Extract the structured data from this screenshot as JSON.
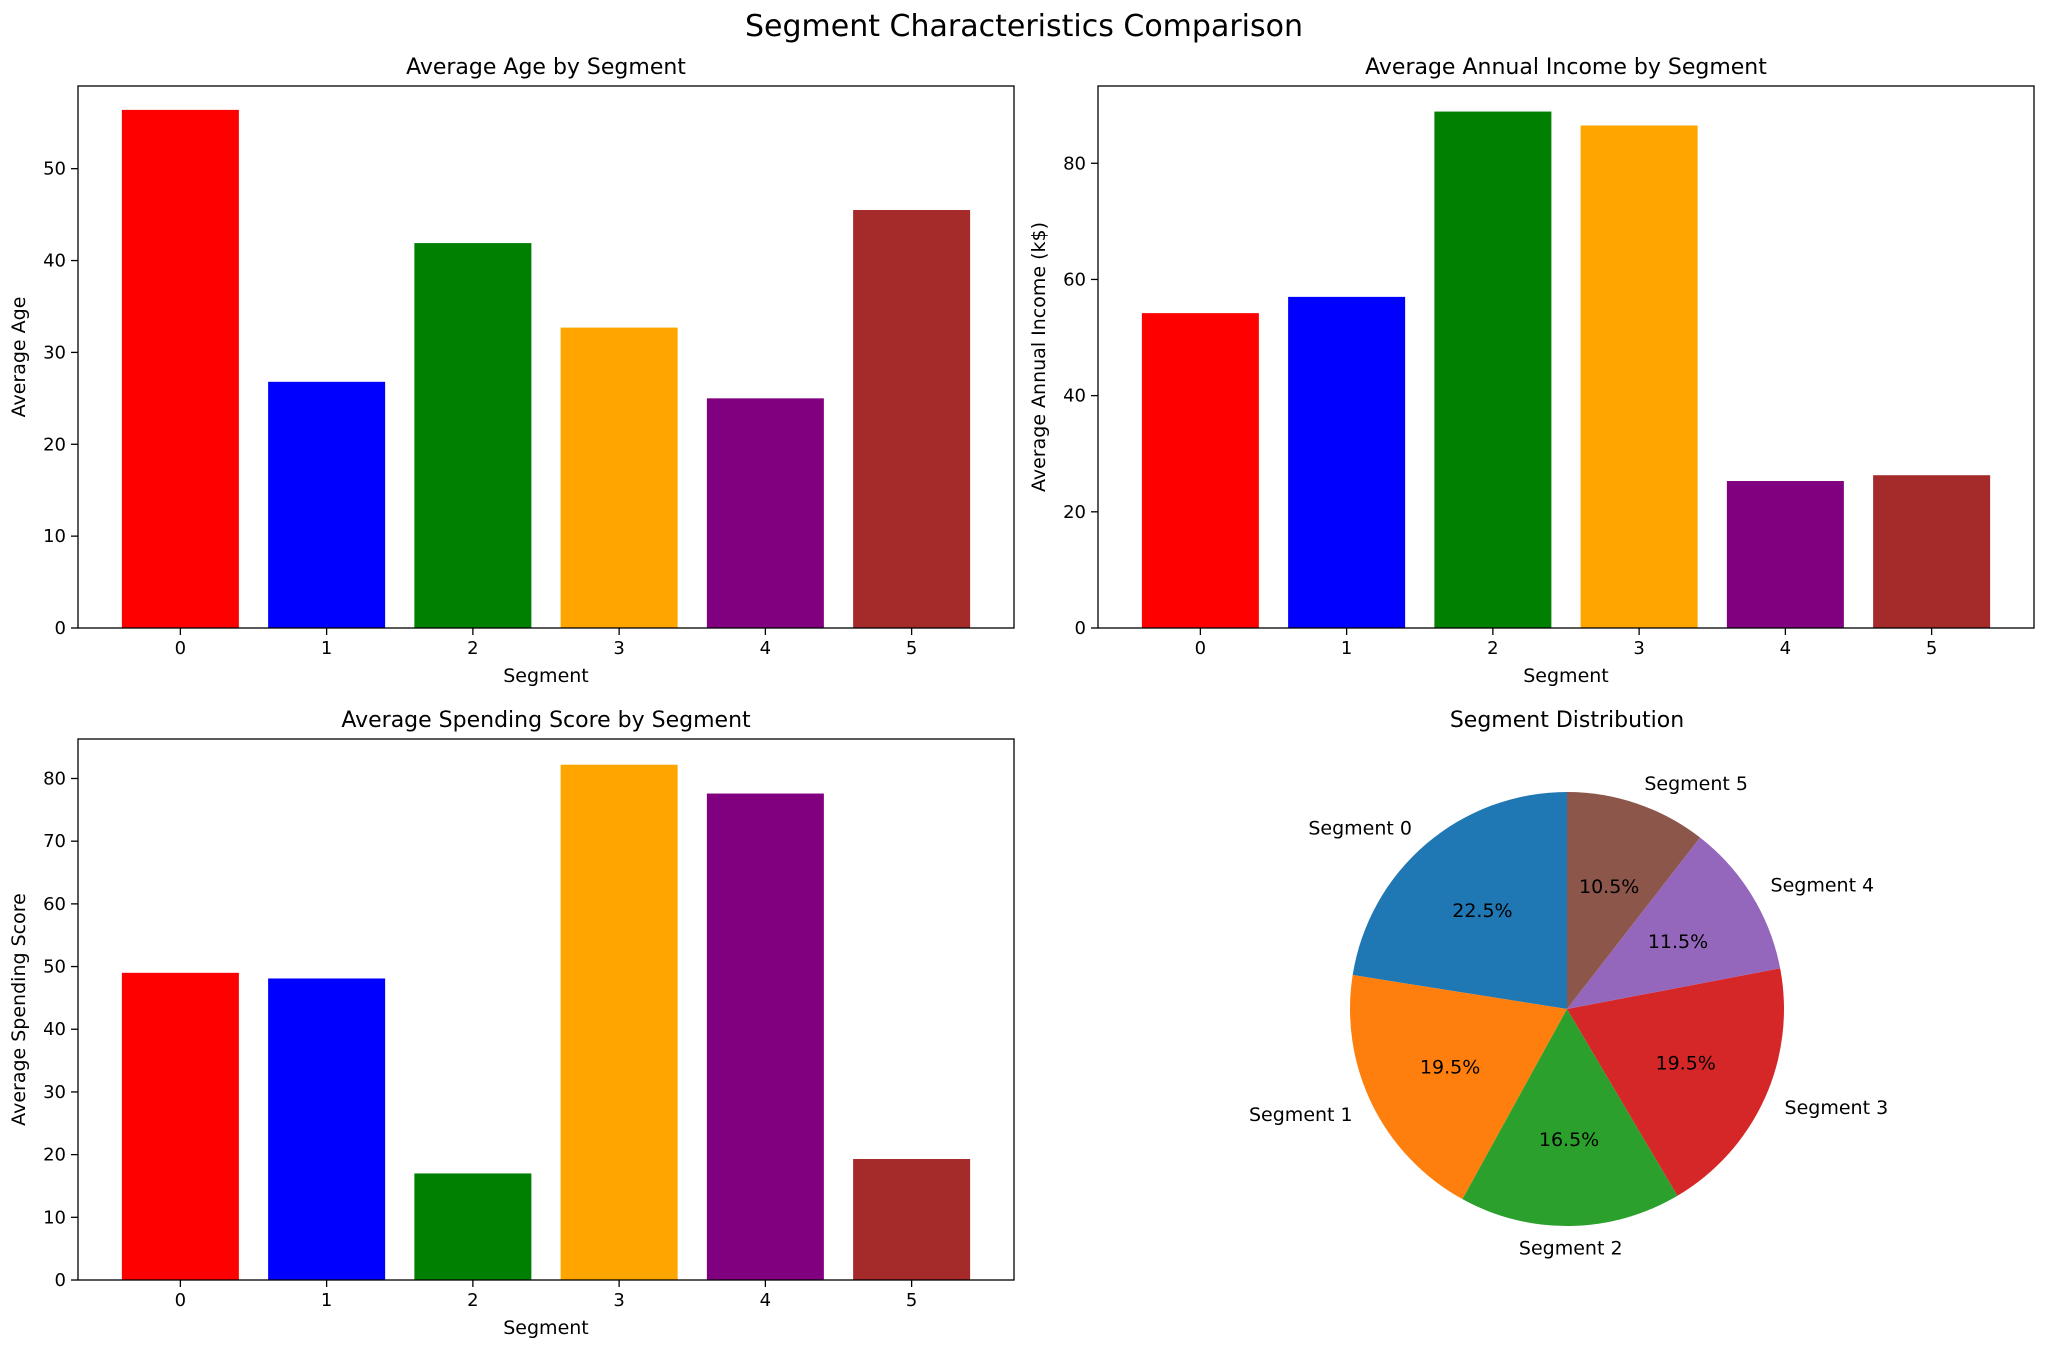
{
  "figure": {
    "title": "Segment Characteristics Comparison"
  },
  "chart_data": [
    {
      "type": "bar",
      "title": "Average Age by Segment",
      "xlabel": "Segment",
      "ylabel": "Average Age",
      "categories": [
        "0",
        "1",
        "2",
        "3",
        "4",
        "5"
      ],
      "values": [
        56.4,
        26.8,
        41.9,
        32.7,
        25.0,
        45.5
      ],
      "colors": [
        "#ff0000",
        "#0000ff",
        "#008000",
        "#ffa500",
        "#800080",
        "#a52a2a"
      ],
      "ylim": [
        0,
        59
      ],
      "yticks": [
        0,
        10,
        20,
        30,
        40,
        50
      ],
      "grid": false
    },
    {
      "type": "bar",
      "title": "Average Annual Income by Segment",
      "xlabel": "Segment",
      "ylabel": "Average Annual Income (k$)",
      "categories": [
        "0",
        "1",
        "2",
        "3",
        "4",
        "5"
      ],
      "values": [
        54.2,
        57.0,
        88.9,
        86.5,
        25.3,
        26.3
      ],
      "colors": [
        "#ff0000",
        "#0000ff",
        "#008000",
        "#ffa500",
        "#800080",
        "#a52a2a"
      ],
      "ylim": [
        0,
        93.3
      ],
      "yticks": [
        0,
        20,
        40,
        60,
        80
      ],
      "grid": false
    },
    {
      "type": "bar",
      "title": "Average Spending Score by Segment",
      "xlabel": "Segment",
      "ylabel": "Average Spending Score",
      "categories": [
        "0",
        "1",
        "2",
        "3",
        "4",
        "5"
      ],
      "values": [
        49.0,
        48.1,
        17.0,
        82.2,
        77.6,
        19.3
      ],
      "colors": [
        "#ff0000",
        "#0000ff",
        "#008000",
        "#ffa500",
        "#800080",
        "#a52a2a"
      ],
      "ylim": [
        0,
        86.3
      ],
      "yticks": [
        0,
        10,
        20,
        30,
        40,
        50,
        60,
        70,
        80
      ],
      "grid": false
    },
    {
      "type": "pie",
      "title": "Segment Distribution",
      "labels": [
        "Segment 0",
        "Segment 1",
        "Segment 2",
        "Segment 3",
        "Segment 4",
        "Segment 5"
      ],
      "values": [
        22.5,
        19.5,
        16.5,
        19.5,
        11.5,
        10.5
      ],
      "pct_labels": [
        "22.5%",
        "19.5%",
        "16.5%",
        "19.5%",
        "11.5%",
        "10.5%"
      ],
      "colors": [
        "#1f77b4",
        "#ff7f0e",
        "#2ca02c",
        "#d62728",
        "#9467bd",
        "#8c564b"
      ],
      "start_angle": 90,
      "direction": "counterclockwise"
    }
  ]
}
